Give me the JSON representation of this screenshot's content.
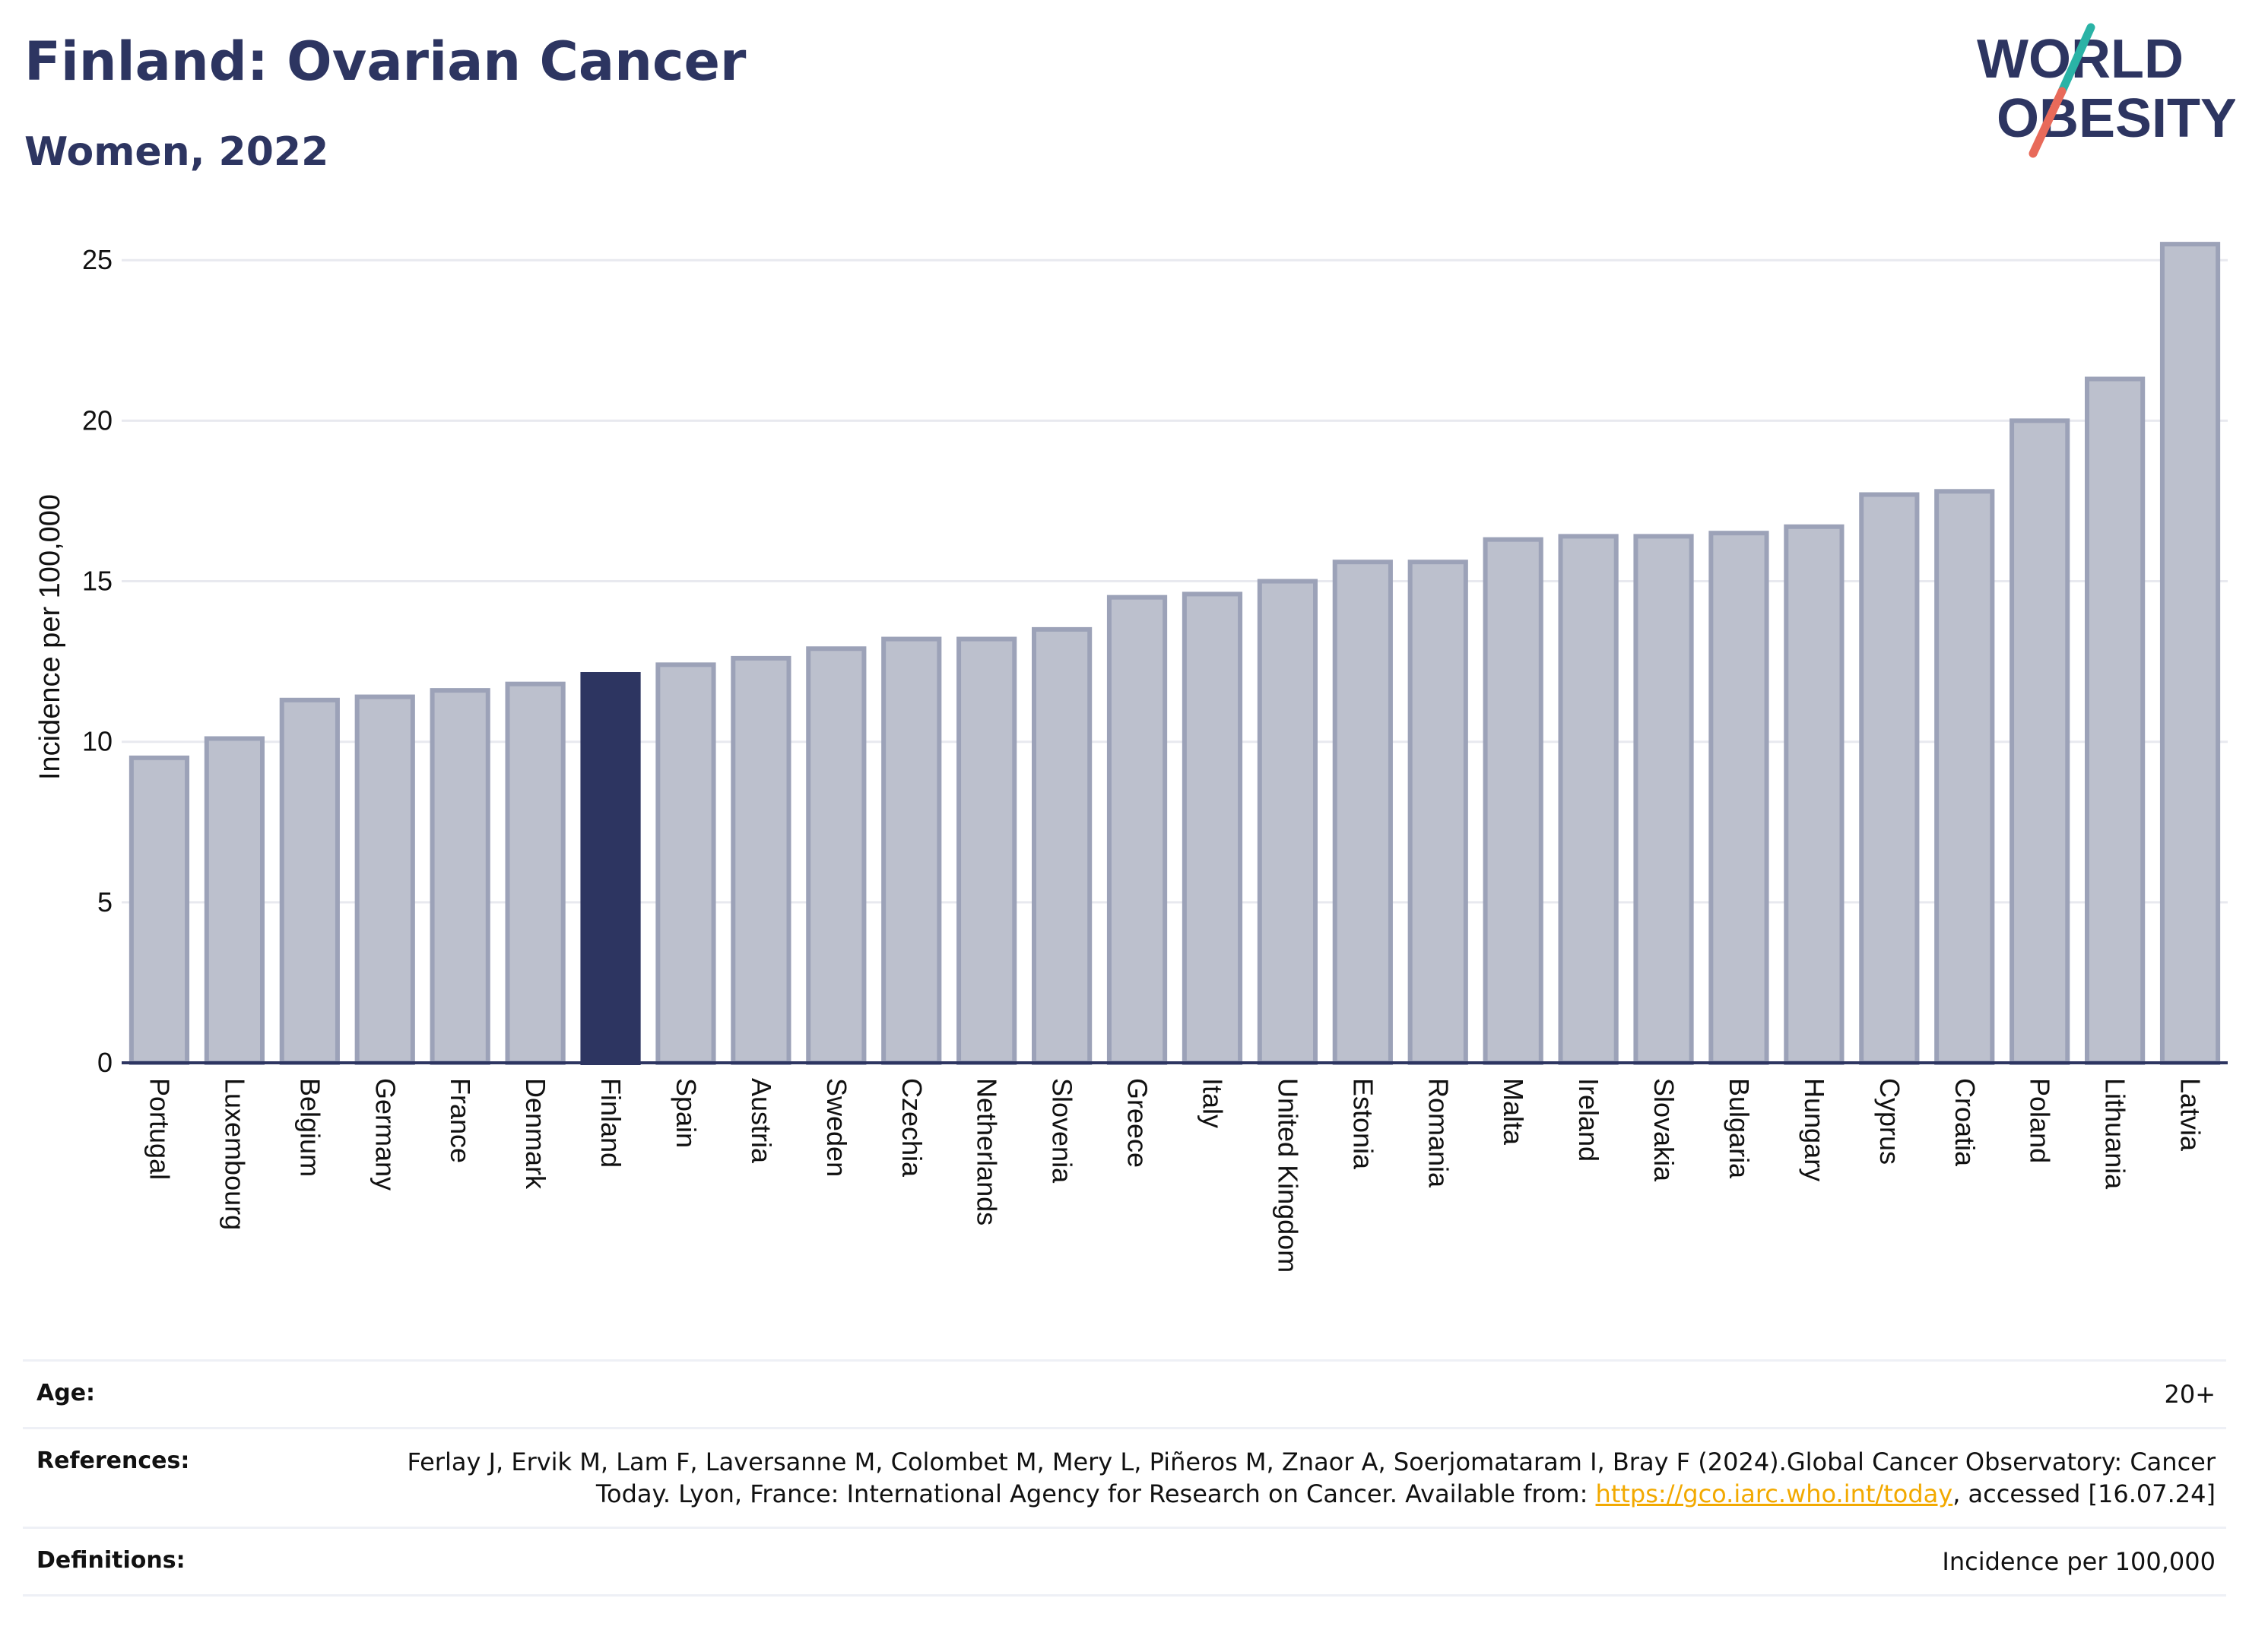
{
  "header": {
    "title": "Finland: Ovarian Cancer",
    "subtitle": "Women, 2022"
  },
  "logo": {
    "line1": "WORLD",
    "line2": "OBESITY",
    "colors": {
      "text": "#2d3561",
      "slash_top": "#2ab3a6",
      "slash_bottom": "#e86a5a"
    }
  },
  "chart_data": {
    "type": "bar",
    "ylabel": "Incidence per 100,000",
    "xlabel": "",
    "ylim": [
      0,
      26
    ],
    "yticks": [
      0,
      5,
      10,
      15,
      20,
      25
    ],
    "grid": true,
    "highlight": "Finland",
    "colors": {
      "bar": "#bcc0cd",
      "bar_border": "#9ca2b8",
      "highlight": "#2d3561",
      "grid": "#e8e9ef",
      "axis": "#2d3561"
    },
    "categories": [
      "Portugal",
      "Luxembourg",
      "Belgium",
      "Germany",
      "France",
      "Denmark",
      "Finland",
      "Spain",
      "Austria",
      "Sweden",
      "Czechia",
      "Netherlands",
      "Slovenia",
      "Greece",
      "Italy",
      "United Kingdom",
      "Estonia",
      "Romania",
      "Malta",
      "Ireland",
      "Slovakia",
      "Bulgaria",
      "Hungary",
      "Cyprus",
      "Croatia",
      "Poland",
      "Lithuania",
      "Latvia"
    ],
    "values": [
      9.5,
      10.1,
      11.3,
      11.4,
      11.6,
      11.8,
      12.1,
      12.4,
      12.6,
      12.9,
      13.2,
      13.2,
      13.5,
      14.5,
      14.6,
      15.0,
      15.6,
      15.6,
      16.3,
      16.4,
      16.4,
      16.5,
      16.7,
      17.7,
      17.8,
      20.0,
      21.3,
      25.5
    ]
  },
  "info": {
    "age_label": "Age:",
    "age_value": "20+",
    "references_label": "References:",
    "references_text": "Ferlay J, Ervik M, Lam F, Laversanne M, Colombet M, Mery L, Piñeros M, Znaor A, Soerjomataram I, Bray F (2024).Global Cancer Observatory: Cancer Today. Lyon, France: International Agency for Research on Cancer. Available from: ",
    "references_link": "https://gco.iarc.who.int/today",
    "references_suffix": ", accessed [16.07.24]",
    "definitions_label": "Definitions:",
    "definitions_value": "Incidence per 100,000"
  }
}
